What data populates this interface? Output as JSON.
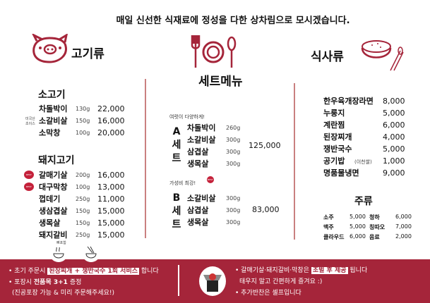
{
  "header": {
    "tagline": "매일 신선한 식재료에 정성을 다한 상차림으로 모시겠습니다."
  },
  "sections": {
    "meat": "고기류",
    "set": "세트메뉴",
    "meal": "식사류",
    "drinks": "주류"
  },
  "accent_color": "#a5253a",
  "beef": {
    "title": "소고기",
    "origin_note": "미국산 초이스",
    "items": [
      {
        "name": "차돌박이",
        "weight": "130g",
        "price": "22,000"
      },
      {
        "name": "소갈비살",
        "weight": "150g",
        "price": "16,000"
      },
      {
        "name": "소막창",
        "weight": "100g",
        "price": "20,000"
      }
    ]
  },
  "pork": {
    "title": "돼지고기",
    "badge": "BEST",
    "bone_note": "뼈포함",
    "items": [
      {
        "name": "갈매기살",
        "weight": "200g",
        "price": "16,000"
      },
      {
        "name": "대구막창",
        "weight": "100g",
        "price": "13,000"
      },
      {
        "name": "껍데기",
        "weight": "250g",
        "price": "11,000"
      },
      {
        "name": "생삼겹살",
        "weight": "150g",
        "price": "15,000"
      },
      {
        "name": "생목살",
        "weight": "150g",
        "price": "15,000"
      },
      {
        "name": "돼지갈비",
        "weight": "250g",
        "price": "15,000"
      }
    ]
  },
  "set_a": {
    "tagline": "여럿이 다양하게!",
    "letters": [
      "A",
      "세",
      "트"
    ],
    "price": "125,000",
    "items": [
      {
        "name": "차돌박이",
        "weight": "260g"
      },
      {
        "name": "소갈비살",
        "weight": "300g"
      },
      {
        "name": "삼겹살",
        "weight": "300g"
      },
      {
        "name": "생목살",
        "weight": "300g"
      }
    ]
  },
  "set_b": {
    "tagline": "가성비 최강!",
    "badge": "BEST",
    "letters": [
      "B",
      "세",
      "트"
    ],
    "price": "83,000",
    "items": [
      {
        "name": "소갈비살",
        "weight": "300g"
      },
      {
        "name": "삼겹살",
        "weight": "300g"
      },
      {
        "name": "생목살",
        "weight": "300g"
      }
    ]
  },
  "meals": [
    {
      "name": "한우육개장라면",
      "price": "8,000"
    },
    {
      "name": "누룽지",
      "price": "5,000"
    },
    {
      "name": "계란찜",
      "price": "6,000"
    },
    {
      "name": "된장찌개",
      "price": "4,000"
    },
    {
      "name": "쟁반국수",
      "price": "5,000"
    },
    {
      "name": "공기밥",
      "note": "(이천쌀)",
      "price": "1,000"
    },
    {
      "name": "명품물냉면",
      "price": "9,000"
    }
  ],
  "drinks": [
    {
      "name": "소주",
      "price": "5,000",
      "name2": "청하",
      "price2": "6,000"
    },
    {
      "name": "맥주",
      "price": "5,000",
      "name2": "칭따오",
      "price2": "7,000"
    },
    {
      "name": "클라우드",
      "price": "6,000",
      "name2": "음료",
      "price2": "2,000"
    }
  ],
  "footer": {
    "l1a": "• 초기 주문시",
    "l1b": "된장찌개 + 쟁반국수 1회 서비스",
    "l1c": "합니다",
    "l2a": "• 포장시",
    "l2b": "전품목 3+1",
    "l2c": "증정",
    "l3": "(진공포장 가능 & 미리 주문해주세요!)",
    "r1a": "• 갈매기살·돼지갈비·막창은",
    "r1b": "초벌 후 제공",
    "r1c": "됩니다",
    "r2": "태우지 말고 간편하게 즐겨요 :)",
    "r3": "• 추가반찬은 셀프입니다"
  }
}
